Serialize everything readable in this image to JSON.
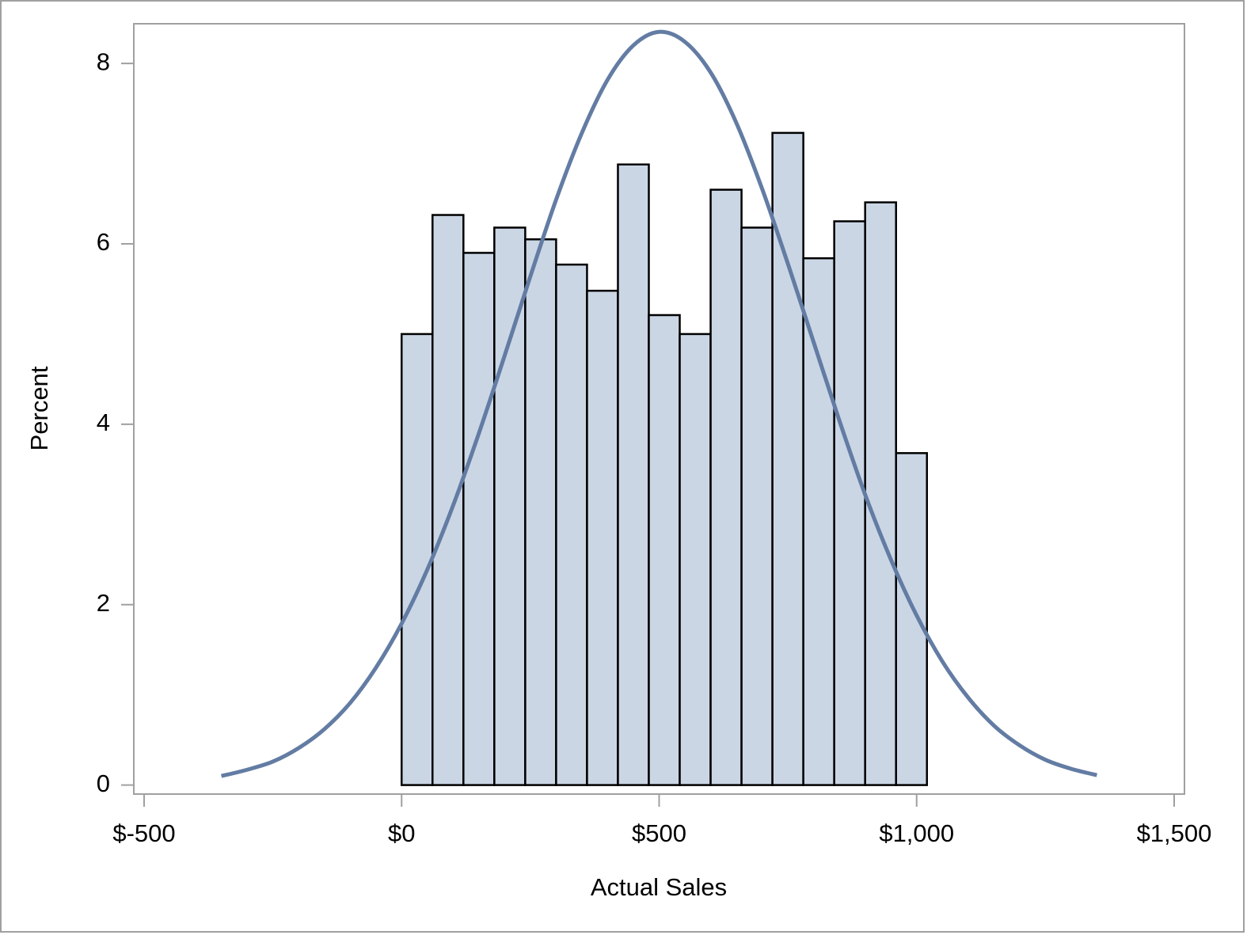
{
  "chart_data": {
    "type": "histogram",
    "x_label": "Actual Sales",
    "y_label": "Percent",
    "bins": [
      0,
      60,
      120,
      180,
      240,
      300,
      360,
      420,
      480,
      540,
      600,
      660,
      720,
      780,
      840,
      900,
      960,
      1020
    ],
    "values": [
      5.0,
      6.32,
      5.9,
      6.18,
      6.05,
      5.77,
      5.48,
      6.88,
      5.21,
      5.0,
      6.6,
      6.18,
      7.23,
      5.84,
      6.25,
      6.46,
      3.68
    ],
    "color": "#cbd6e5",
    "edge_color": "#000000",
    "curve": {
      "color": "#637ca3",
      "x": [
        -350,
        -300,
        -250,
        -200,
        -150,
        -100,
        -50,
        0,
        50,
        100,
        150,
        200,
        250,
        300,
        350,
        400,
        450,
        500,
        550,
        600,
        650,
        700,
        750,
        800,
        850,
        900,
        950,
        1000,
        1050,
        1100,
        1150,
        1200,
        1250,
        1300,
        1350
      ],
      "values": [
        0.1,
        0.17,
        0.26,
        0.41,
        0.62,
        0.91,
        1.3,
        1.79,
        2.39,
        3.1,
        3.9,
        4.76,
        5.64,
        6.49,
        7.23,
        7.82,
        8.2,
        8.35,
        8.24,
        7.9,
        7.34,
        6.61,
        5.78,
        4.91,
        4.04,
        3.22,
        2.5,
        1.88,
        1.37,
        0.97,
        0.66,
        0.44,
        0.28,
        0.18,
        0.11
      ]
    },
    "xlim": [
      -520,
      1520
    ],
    "ylim": [
      -0.1,
      8.44
    ],
    "xticks": [
      {
        "value": -500,
        "label": "$-500"
      },
      {
        "value": 0,
        "label": "$0"
      },
      {
        "value": 500,
        "label": "$500"
      },
      {
        "value": 1000,
        "label": "$1,000"
      },
      {
        "value": 1500,
        "label": "$1,500"
      }
    ],
    "yticks": [
      0,
      2,
      4,
      6,
      8
    ],
    "grid": false
  }
}
